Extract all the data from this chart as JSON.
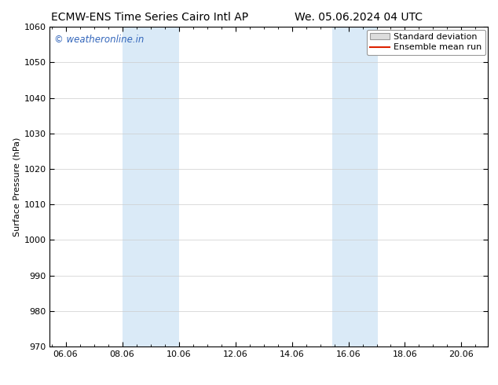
{
  "title_left": "ECMW-ENS Time Series Cairo Intl AP",
  "title_right": "We. 05.06.2024 04 UTC",
  "ylabel": "Surface Pressure (hPa)",
  "ylim": [
    970,
    1060
  ],
  "yticks": [
    970,
    980,
    990,
    1000,
    1010,
    1020,
    1030,
    1040,
    1050,
    1060
  ],
  "xlim_start": 5.5,
  "xlim_end": 21.0,
  "xticks": [
    6.06,
    8.06,
    10.06,
    12.06,
    14.06,
    16.06,
    18.06,
    20.06
  ],
  "xtick_labels": [
    "06.06",
    "08.06",
    "10.06",
    "12.06",
    "14.06",
    "16.06",
    "18.06",
    "20.06"
  ],
  "shaded_bands": [
    {
      "x_start": 8.06,
      "x_end": 10.06
    },
    {
      "x_start": 15.5,
      "x_end": 17.1
    }
  ],
  "shade_color": "#daeaf7",
  "watermark_text": "© weatheronline.in",
  "watermark_color": "#3366bb",
  "legend_std_label": "Standard deviation",
  "legend_mean_label": "Ensemble mean run",
  "legend_std_facecolor": "#dddddd",
  "legend_std_edgecolor": "#999999",
  "legend_mean_color": "#dd2200",
  "background_color": "#ffffff",
  "grid_color": "#cccccc",
  "title_fontsize": 10,
  "ylabel_fontsize": 8,
  "tick_fontsize": 8,
  "watermark_fontsize": 8.5,
  "legend_fontsize": 8
}
